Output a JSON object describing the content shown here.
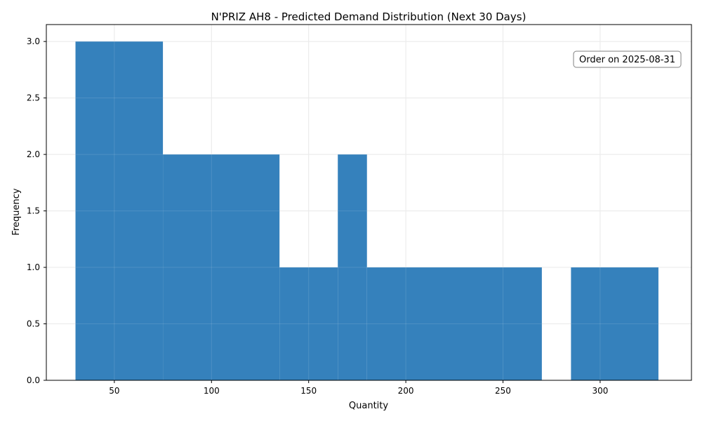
{
  "chart_data": {
    "type": "bar",
    "title": "N'PRIZ AH8 - Predicted Demand Distribution (Next 30 Days)",
    "xlabel": "Quantity",
    "ylabel": "Frequency",
    "xlim": [
      15,
      347
    ],
    "ylim": [
      0,
      3.15
    ],
    "grid": true,
    "bar_color": "#3581bc",
    "annotation": "Order on 2025-08-31",
    "xticks": [
      "50",
      "100",
      "150",
      "200",
      "250",
      "300"
    ],
    "xtick_values": [
      50,
      100,
      150,
      200,
      250,
      300
    ],
    "yticks": [
      "0.0",
      "0.5",
      "1.0",
      "1.5",
      "2.0",
      "2.5",
      "3.0"
    ],
    "ytick_values": [
      0,
      0.5,
      1.0,
      1.5,
      2.0,
      2.5,
      3.0
    ],
    "bins": [
      {
        "x0": 30,
        "x1": 75,
        "value": 3
      },
      {
        "x0": 75,
        "x1": 135,
        "value": 2
      },
      {
        "x0": 135,
        "x1": 165,
        "value": 1
      },
      {
        "x0": 165,
        "x1": 180,
        "value": 2
      },
      {
        "x0": 180,
        "x1": 270,
        "value": 1
      },
      {
        "x0": 270,
        "x1": 285,
        "value": 0
      },
      {
        "x0": 285,
        "x1": 330,
        "value": 1
      }
    ]
  }
}
